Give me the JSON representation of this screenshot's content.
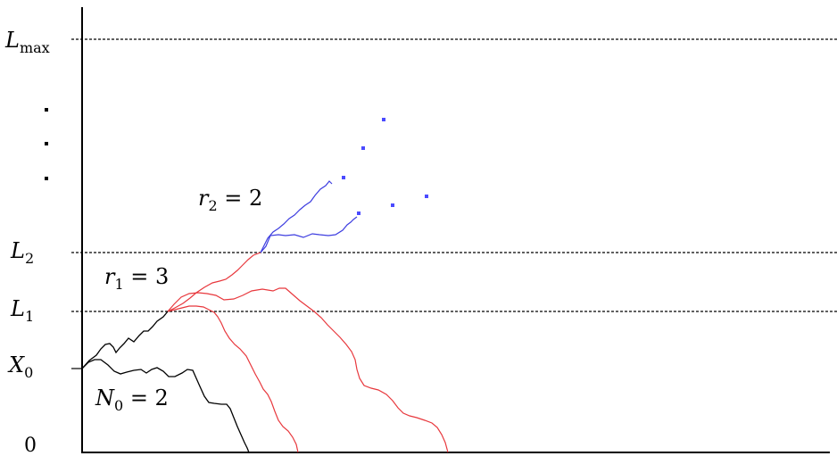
{
  "levels": {
    "lmax": {
      "base": "L",
      "sub": "max"
    },
    "l2": {
      "base": "L",
      "sub": "2"
    },
    "l1": {
      "base": "L",
      "sub": "1"
    },
    "x0": {
      "base": "X",
      "sub": "0"
    },
    "zero": "0"
  },
  "annotations": {
    "n0": {
      "base": "N",
      "sub": "0",
      "rest": " = 2"
    },
    "r1": {
      "base": "r",
      "sub": "1",
      "rest": " = 3"
    },
    "r2": {
      "base": "r",
      "sub": "2",
      "rest": " = 2"
    }
  },
  "colors": {
    "stage0": "#000000",
    "stage1": "#e8383d",
    "stage2": "#3e3ee0",
    "dots": "#4a4aff"
  }
}
